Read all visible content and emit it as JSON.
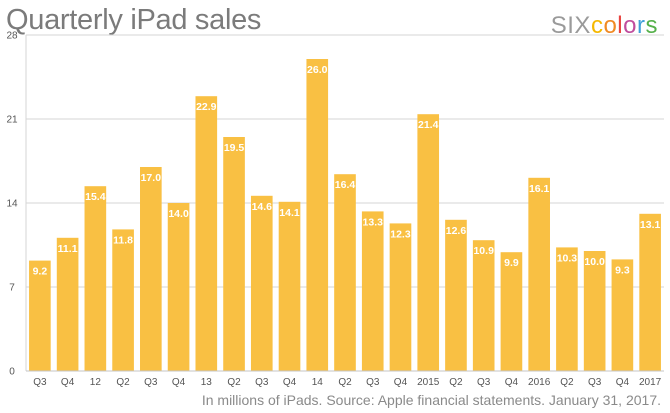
{
  "header": {
    "title": "Quarterly iPad sales",
    "brand_six": "SIX",
    "brand_colors_letters": [
      "c",
      "o",
      "l",
      "o",
      "r",
      "s"
    ]
  },
  "colors": {
    "bar": "#f9c043",
    "grid": "#d6d6d6",
    "brand_letters": [
      "#f5b800",
      "#f08a24",
      "#e8433f",
      "#c04d9d",
      "#3fa0d8",
      "#55b04a"
    ]
  },
  "footer": {
    "note": "In millions of iPads. Source: Apple financial statements. January 31, 2017."
  },
  "chart_data": {
    "type": "bar",
    "title": "Quarterly iPad sales",
    "xlabel": "",
    "ylabel": "",
    "ylim": [
      0,
      28
    ],
    "yticks": [
      0,
      7,
      14,
      21,
      28
    ],
    "grid": true,
    "categories": [
      "Q3",
      "Q4",
      "12",
      "Q2",
      "Q3",
      "Q4",
      "13",
      "Q2",
      "Q3",
      "Q4",
      "14",
      "Q2",
      "Q3",
      "Q4",
      "2015",
      "Q2",
      "Q3",
      "Q4",
      "2016",
      "Q2",
      "Q3",
      "Q4",
      "2017"
    ],
    "values": [
      9.2,
      11.1,
      15.4,
      11.8,
      17.0,
      14.0,
      22.9,
      19.5,
      14.6,
      14.1,
      26.0,
      16.4,
      13.3,
      12.3,
      21.4,
      12.6,
      10.9,
      9.9,
      16.1,
      10.3,
      10.0,
      9.3,
      13.1
    ],
    "value_labels": [
      "9.2",
      "11.1",
      "15.4",
      "11.8",
      "17.0",
      "14.0",
      "22.9",
      "19.5",
      "14.6",
      "14.1",
      "26.0",
      "16.4",
      "13.3",
      "12.3",
      "21.4",
      "12.6",
      "10.9",
      "9.9",
      "16.1",
      "10.3",
      "10.0",
      "9.3",
      "13.1"
    ]
  }
}
